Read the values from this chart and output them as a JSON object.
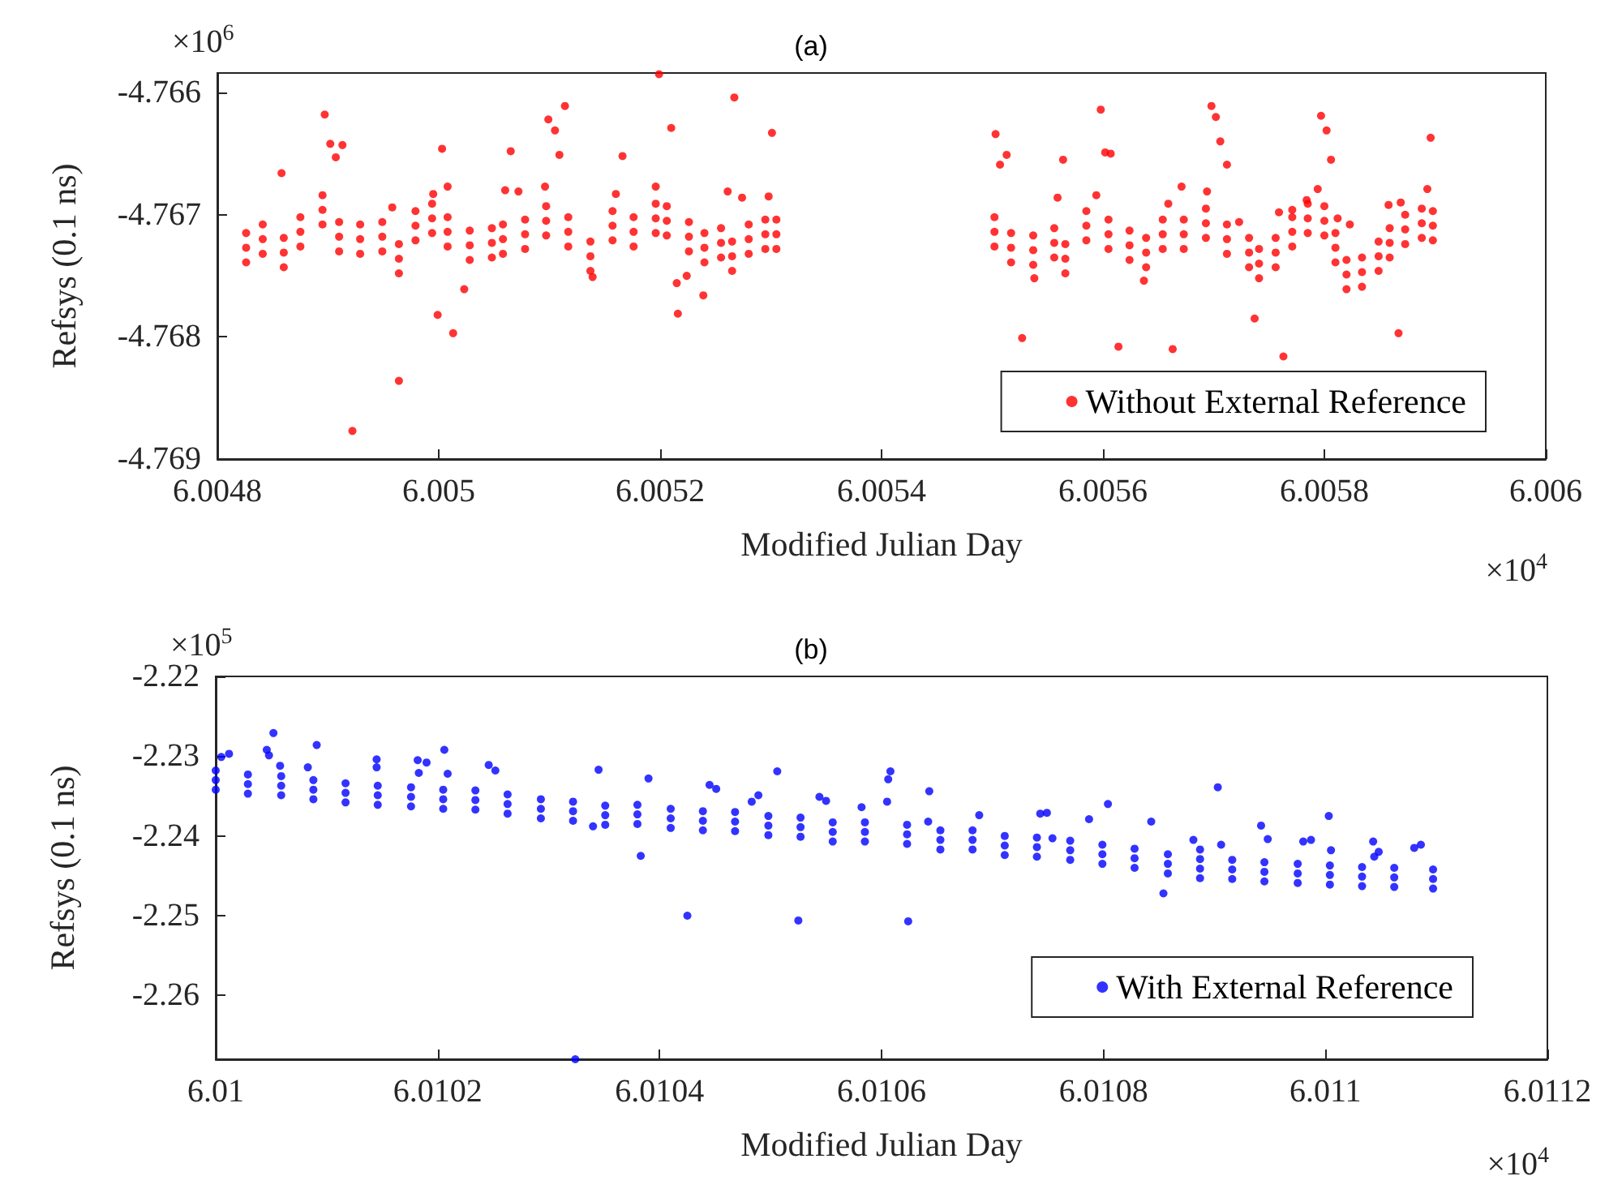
{
  "chart_data": [
    {
      "type": "scatter",
      "title": "(a)",
      "xlabel": "Modified Julian Day",
      "ylabel": "Refsys (0.1 ns)",
      "annotations": [
        "×10$^{6}$",
        "×10$^{4}$"
      ],
      "xlim": [
        6.0048,
        6.006
      ],
      "ylim": [
        -4.769,
        -4.76584
      ],
      "xticks": [
        6.0048,
        6.005,
        6.0052,
        6.0054,
        6.0056,
        6.0058,
        6.006
      ],
      "yticks": [
        -4.769,
        -4.768,
        -4.767,
        -4.766
      ],
      "legend": "bottom right",
      "marker": "circle",
      "x": [
        6.004826,
        6.004826,
        6.004826,
        6.004841,
        6.004841,
        6.004841,
        6.00486,
        6.00486,
        6.00486,
        6.004875,
        6.004875,
        6.004875,
        6.004895,
        6.004895,
        6.004895,
        6.00491,
        6.00491,
        6.00491,
        6.004929,
        6.004929,
        6.004929,
        6.004949,
        6.004949,
        6.004949,
        6.004964,
        6.004964,
        6.004964,
        6.004979,
        6.004979,
        6.004979,
        6.004994,
        6.004994,
        6.004994,
        6.005008,
        6.005008,
        6.005008,
        6.005028,
        6.005028,
        6.005028,
        6.005048,
        6.005048,
        6.005048,
        6.005058,
        6.005058,
        6.005058,
        6.005078,
        6.005078,
        6.005078,
        6.005097,
        6.005097,
        6.005097,
        6.005117,
        6.005117,
        6.005117,
        6.005137,
        6.005137,
        6.005137,
        6.005157,
        6.005157,
        6.005157,
        6.005176,
        6.005176,
        6.005176,
        6.005196,
        6.005196,
        6.005196,
        6.005206,
        6.005206,
        6.005206,
        6.005226,
        6.005226,
        6.005226,
        6.00524,
        6.00524,
        6.00524,
        6.005255,
        6.005255,
        6.005255,
        6.005265,
        6.005265,
        6.005265,
        6.00528,
        6.00528,
        6.00528,
        6.005295,
        6.005295,
        6.005295,
        6.005305,
        6.005305,
        6.005305,
        6.005502,
        6.005502,
        6.005502,
        6.005517,
        6.005517,
        6.005517,
        6.005537,
        6.005537,
        6.005537,
        6.005556,
        6.005556,
        6.005556,
        6.005566,
        6.005566,
        6.005566,
        6.005585,
        6.005585,
        6.005585,
        6.005605,
        6.005605,
        6.005605,
        6.005624,
        6.005624,
        6.005624,
        6.005639,
        6.005639,
        6.005639,
        6.005654,
        6.005654,
        6.005654,
        6.005673,
        6.005673,
        6.005673,
        6.005693,
        6.005693,
        6.005693,
        6.005712,
        6.005712,
        6.005712,
        6.005732,
        6.005732,
        6.005732,
        6.005741,
        6.005741,
        6.005741,
        6.005756,
        6.005756,
        6.005756,
        6.005771,
        6.005771,
        6.005771,
        6.005785,
        6.005785,
        6.005785,
        6.0058,
        6.0058,
        6.0058,
        6.00581,
        6.00581,
        6.00581,
        6.00582,
        6.00582,
        6.00582,
        6.005834,
        6.005834,
        6.005834,
        6.005849,
        6.005849,
        6.005849,
        6.005859,
        6.005859,
        6.005859,
        6.005873,
        6.005873,
        6.005873,
        6.005888,
        6.005888,
        6.005888,
        6.005898,
        6.005898,
        6.005898,
        6.004858,
        6.004897,
        6.004902,
        6.004907,
        6.004913,
        6.004922,
        6.004964,
        6.004999,
        6.005003,
        6.005008,
        6.005013,
        6.005023,
        6.005065,
        6.00506,
        6.005072,
        6.005099,
        6.005105,
        6.005109,
        6.005114,
        6.005096,
        6.005139,
        6.005166,
        6.00516,
        6.005196,
        6.005199,
        6.00521,
        6.005215,
        6.005216,
        6.005224,
        6.005239,
        6.005261,
        6.005267,
        6.005274,
        6.005298,
        6.005301,
        6.004958,
        6.004995,
        6.005503,
        6.005507,
        6.005513,
        6.005527,
        6.005538,
        6.005559,
        6.005564,
        6.005594,
        6.005598,
        6.005602,
        6.005607,
        6.005614,
        6.005637,
        6.005659,
        6.005663,
        6.005671,
        6.005694,
        6.005698,
        6.005702,
        6.005706,
        6.005712,
        6.005723,
        6.005737,
        6.005759,
        6.005763,
        6.005771,
        6.005784,
        6.005794,
        6.005797,
        6.005802,
        6.005806,
        6.005812,
        6.005823,
        6.005858,
        6.005867,
        6.005869,
        6.005896,
        6.005893
      ],
      "series": [
        {
          "name": "Without External Reference",
          "color": "#ff0000",
          "values": [
            -4.76715,
            -4.76727,
            -4.76739,
            -4.76708,
            -4.7672,
            -4.76732,
            -4.76719,
            -4.76731,
            -4.76743,
            -4.76702,
            -4.76714,
            -4.76726,
            -4.76684,
            -4.76696,
            -4.76708,
            -4.76706,
            -4.76718,
            -4.7673,
            -4.76708,
            -4.7672,
            -4.76732,
            -4.76706,
            -4.76718,
            -4.7673,
            -4.76724,
            -4.76736,
            -4.76748,
            -4.76697,
            -4.76709,
            -4.76721,
            -4.76691,
            -4.76703,
            -4.76715,
            -4.76702,
            -4.76714,
            -4.76726,
            -4.76713,
            -4.76725,
            -4.76737,
            -4.76711,
            -4.76723,
            -4.76735,
            -4.76708,
            -4.7672,
            -4.76732,
            -4.76704,
            -4.76716,
            -4.76728,
            -4.76693,
            -4.76705,
            -4.76717,
            -4.76702,
            -4.76714,
            -4.76726,
            -4.76722,
            -4.76734,
            -4.76746,
            -4.76697,
            -4.76709,
            -4.76721,
            -4.76702,
            -4.76714,
            -4.76726,
            -4.76691,
            -4.76703,
            -4.76715,
            -4.76693,
            -4.76705,
            -4.76717,
            -4.76706,
            -4.76718,
            -4.7673,
            -4.76715,
            -4.76727,
            -4.76739,
            -4.76711,
            -4.76723,
            -4.76735,
            -4.76722,
            -4.76734,
            -4.76746,
            -4.76708,
            -4.7672,
            -4.76732,
            -4.76704,
            -4.76716,
            -4.76728,
            -4.76704,
            -4.76716,
            -4.76728,
            -4.76702,
            -4.76714,
            -4.76726,
            -4.76715,
            -4.76727,
            -4.76739,
            -4.76717,
            -4.76729,
            -4.76741,
            -4.76711,
            -4.76723,
            -4.76735,
            -4.76724,
            -4.76736,
            -4.76748,
            -4.76697,
            -4.76709,
            -4.76721,
            -4.76704,
            -4.76716,
            -4.76728,
            -4.76713,
            -4.76725,
            -4.76737,
            -4.76719,
            -4.76731,
            -4.76743,
            -4.76704,
            -4.76716,
            -4.76728,
            -4.76704,
            -4.76716,
            -4.76728,
            -4.76695,
            -4.76707,
            -4.76719,
            -4.76708,
            -4.7672,
            -4.76732,
            -4.76719,
            -4.76731,
            -4.76743,
            -4.76728,
            -4.7674,
            -4.76752,
            -4.76719,
            -4.76731,
            -4.76743,
            -4.76702,
            -4.76714,
            -4.76726,
            -4.76691,
            -4.76703,
            -4.76715,
            -4.76693,
            -4.76705,
            -4.76717,
            -4.76715,
            -4.76727,
            -4.76739,
            -4.76737,
            -4.76749,
            -4.76761,
            -4.76735,
            -4.76747,
            -4.76759,
            -4.76722,
            -4.76734,
            -4.76746,
            -4.76711,
            -4.76723,
            -4.76735,
            -4.767,
            -4.76712,
            -4.76724,
            -4.76695,
            -4.76707,
            -4.76719,
            -4.76697,
            -4.76709,
            -4.76721,
            -4.76666,
            -4.76618,
            -4.76642,
            -4.76653,
            -4.76643,
            -4.76877,
            -4.76836,
            -4.76782,
            -4.76646,
            -4.76677,
            -4.76797,
            -4.76761,
            -4.76648,
            -4.7668,
            -4.76681,
            -4.76622,
            -4.76631,
            -4.76651,
            -4.76611,
            -4.76677,
            -4.76751,
            -4.76652,
            -4.76683,
            -4.76677,
            -4.76585,
            -4.76629,
            -4.76756,
            -4.76781,
            -4.7675,
            -4.76766,
            -4.76681,
            -4.76604,
            -4.76686,
            -4.76685,
            -4.76633,
            -4.76694,
            -4.76683,
            -4.76634,
            -4.76659,
            -4.76651,
            -4.76801,
            -4.76752,
            -4.76686,
            -4.76655,
            -4.76684,
            -4.76614,
            -4.76649,
            -4.7665,
            -4.76808,
            -4.76754,
            -4.76691,
            -4.7681,
            -4.76677,
            -4.76681,
            -4.76611,
            -4.7662,
            -4.7664,
            -4.76659,
            -4.76706,
            -4.76785,
            -4.76698,
            -4.76816,
            -4.76696,
            -4.76688,
            -4.76679,
            -4.76619,
            -4.76631,
            -4.76655,
            -4.76703,
            -4.76708,
            -4.76692,
            -4.76797,
            -4.7669,
            -4.76637,
            -4.76679
          ]
        }
      ]
    },
    {
      "type": "scatter",
      "title": "(b)",
      "xlabel": "Modified Julian Day",
      "ylabel": "Refsys (0.1 ns)",
      "annotations": [
        "×10$^{5}$",
        "×10$^{4}$"
      ],
      "xlim": [
        6.01,
        6.0112
      ],
      "ylim": [
        -2.268,
        -2.22
      ],
      "xticks": [
        6.01,
        6.0102,
        6.0104,
        6.0106,
        6.0108,
        6.011,
        6.0112
      ],
      "yticks": [
        -2.26,
        -2.25,
        -2.24,
        -2.23,
        -2.22
      ],
      "legend": "bottom right",
      "marker": "circle",
      "x": [
        6.01,
        6.01,
        6.01,
        6.010029,
        6.010029,
        6.010029,
        6.010059,
        6.010059,
        6.010059,
        6.010088,
        6.010088,
        6.010088,
        6.010117,
        6.010117,
        6.010117,
        6.010146,
        6.010146,
        6.010146,
        6.010176,
        6.010176,
        6.010176,
        6.010205,
        6.010205,
        6.010205,
        6.010234,
        6.010234,
        6.010234,
        6.010263,
        6.010263,
        6.010263,
        6.010293,
        6.010293,
        6.010293,
        6.010322,
        6.010322,
        6.010322,
        6.010351,
        6.010351,
        6.010351,
        6.01038,
        6.01038,
        6.01038,
        6.01041,
        6.01041,
        6.01041,
        6.010439,
        6.010439,
        6.010439,
        6.010468,
        6.010468,
        6.010468,
        6.010498,
        6.010498,
        6.010498,
        6.010527,
        6.010527,
        6.010527,
        6.010556,
        6.010556,
        6.010556,
        6.010585,
        6.010585,
        6.010585,
        6.010623,
        6.010623,
        6.010623,
        6.010653,
        6.010653,
        6.010653,
        6.010682,
        6.010682,
        6.010682,
        6.010711,
        6.010711,
        6.010711,
        6.01074,
        6.01074,
        6.01074,
        6.01077,
        6.01077,
        6.01077,
        6.010799,
        6.010799,
        6.010799,
        6.010828,
        6.010828,
        6.010828,
        6.010858,
        6.010858,
        6.010858,
        6.010887,
        6.010887,
        6.010887,
        6.010916,
        6.010916,
        6.010916,
        6.010945,
        6.010945,
        6.010945,
        6.010975,
        6.010975,
        6.010975,
        6.011004,
        6.011004,
        6.011004,
        6.011033,
        6.011033,
        6.011033,
        6.011062,
        6.011062,
        6.011062,
        6.011097,
        6.011097,
        6.011097,
        6.010005,
        6.010012,
        6.010046,
        6.010048,
        6.010052,
        6.010058,
        6.010083,
        6.010091,
        6.010145,
        6.010145,
        6.010182,
        6.01019,
        6.010183,
        6.010206,
        6.010209,
        6.010246,
        6.010252,
        6.010345,
        6.010383,
        6.01039,
        6.010425,
        6.010445,
        6.010451,
        6.010483,
        6.010489,
        6.010506,
        6.010525,
        6.010544,
        6.01055,
        6.010582,
        6.010608,
        6.010606,
        6.010605,
        6.010324,
        6.01034,
        6.010624,
        6.010643,
        6.010642,
        6.010688,
        6.010743,
        6.010749,
        6.010754,
        6.010787,
        6.010804,
        6.010843,
        6.010854,
        6.010881,
        6.010887,
        6.010903,
        6.010906,
        6.010942,
        6.010948,
        6.01098,
        6.010987,
        6.011003,
        6.011005,
        6.011043,
        6.011044,
        6.011048,
        6.01108,
        6.011086
      ],
      "series": [
        {
          "name": "With External Reference",
          "color": "#0000ff",
          "values": [
            -2.2318,
            -2.233,
            -2.2342,
            -2.2323,
            -2.2335,
            -2.2347,
            -2.2325,
            -2.2337,
            -2.2349,
            -2.233,
            -2.2342,
            -2.2354,
            -2.2334,
            -2.2346,
            -2.2358,
            -2.2337,
            -2.2349,
            -2.2361,
            -2.2339,
            -2.2351,
            -2.2363,
            -2.2342,
            -2.2354,
            -2.2366,
            -2.2343,
            -2.2355,
            -2.2367,
            -2.2348,
            -2.236,
            -2.2372,
            -2.2354,
            -2.2366,
            -2.2378,
            -2.2357,
            -2.2369,
            -2.2381,
            -2.2362,
            -2.2374,
            -2.2386,
            -2.2361,
            -2.2373,
            -2.2385,
            -2.2366,
            -2.2378,
            -2.239,
            -2.2369,
            -2.2381,
            -2.2393,
            -2.237,
            -2.2382,
            -2.2394,
            -2.2375,
            -2.2387,
            -2.2399,
            -2.2377,
            -2.2389,
            -2.2401,
            -2.2383,
            -2.2395,
            -2.2407,
            -2.2383,
            -2.2395,
            -2.2407,
            -2.2386,
            -2.2398,
            -2.241,
            -2.2393,
            -2.2405,
            -2.2417,
            -2.2393,
            -2.2405,
            -2.2417,
            -2.24,
            -2.2412,
            -2.2424,
            -2.2402,
            -2.2414,
            -2.2426,
            -2.2406,
            -2.2418,
            -2.243,
            -2.2411,
            -2.2423,
            -2.2435,
            -2.2416,
            -2.2428,
            -2.244,
            -2.2423,
            -2.2435,
            -2.2447,
            -2.2429,
            -2.2441,
            -2.2453,
            -2.243,
            -2.2442,
            -2.2454,
            -2.2433,
            -2.2445,
            -2.2457,
            -2.2435,
            -2.2447,
            -2.2459,
            -2.2437,
            -2.2449,
            -2.2461,
            -2.2439,
            -2.2451,
            -2.2463,
            -2.244,
            -2.2452,
            -2.2464,
            -2.2442,
            -2.2454,
            -2.2466,
            -2.2301,
            -2.2297,
            -2.2292,
            -2.2299,
            -2.2271,
            -2.2312,
            -2.2314,
            -2.2286,
            -2.2304,
            -2.2314,
            -2.2305,
            -2.2308,
            -2.2321,
            -2.2292,
            -2.2322,
            -2.2311,
            -2.2318,
            -2.2317,
            -2.2425,
            -2.2328,
            -2.25,
            -2.2336,
            -2.2341,
            -2.2357,
            -2.2349,
            -2.2319,
            -2.2506,
            -2.2351,
            -2.2356,
            -2.2364,
            -2.2319,
            -2.2329,
            -2.2357,
            -2.268,
            -2.2388,
            -2.2507,
            -2.2344,
            -2.2382,
            -2.2374,
            -2.2372,
            -2.2371,
            -2.2403,
            -2.2379,
            -2.236,
            -2.2382,
            -2.2472,
            -2.2405,
            -2.2417,
            -2.2339,
            -2.2411,
            -2.2387,
            -2.2404,
            -2.2407,
            -2.2405,
            -2.2375,
            -2.2418,
            -2.2407,
            -2.2426,
            -2.242,
            -2.2415,
            -2.2411
          ]
        }
      ]
    }
  ]
}
